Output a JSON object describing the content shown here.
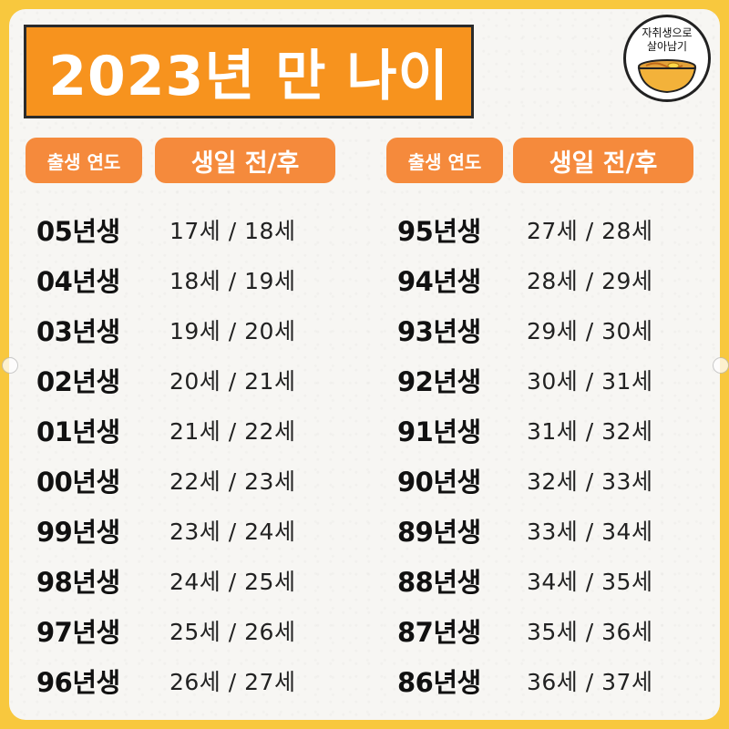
{
  "title": "2023년 만 나이",
  "logo": {
    "line1": "자취생으로",
    "line2": "살아남기",
    "icon": "noodle-bowl-icon"
  },
  "headers": {
    "birth_year": "출생 연도",
    "before_after": "생일 전/후"
  },
  "colors": {
    "frame": "#f8c83e",
    "title_bg": "#f7931e",
    "pill_bg": "#f58a3c"
  },
  "left_rows": [
    {
      "year": "05년생",
      "ages": "17세 / 18세"
    },
    {
      "year": "04년생",
      "ages": "18세 / 19세"
    },
    {
      "year": "03년생",
      "ages": "19세 / 20세"
    },
    {
      "year": "02년생",
      "ages": "20세 / 21세"
    },
    {
      "year": "01년생",
      "ages": "21세 / 22세"
    },
    {
      "year": "00년생",
      "ages": "22세 / 23세"
    },
    {
      "year": "99년생",
      "ages": "23세 / 24세"
    },
    {
      "year": "98년생",
      "ages": "24세 / 25세"
    },
    {
      "year": "97년생",
      "ages": "25세 / 26세"
    },
    {
      "year": "96년생",
      "ages": "26세 / 27세"
    }
  ],
  "right_rows": [
    {
      "year": "95년생",
      "ages": "27세 / 28세"
    },
    {
      "year": "94년생",
      "ages": "28세 / 29세"
    },
    {
      "year": "93년생",
      "ages": "29세 / 30세"
    },
    {
      "year": "92년생",
      "ages": "30세 / 31세"
    },
    {
      "year": "91년생",
      "ages": "31세 / 32세"
    },
    {
      "year": "90년생",
      "ages": "32세 / 33세"
    },
    {
      "year": "89년생",
      "ages": "33세 / 34세"
    },
    {
      "year": "88년생",
      "ages": "34세 / 35세"
    },
    {
      "year": "87년생",
      "ages": "35세 / 36세"
    },
    {
      "year": "86년생",
      "ages": "36세 / 37세"
    }
  ]
}
